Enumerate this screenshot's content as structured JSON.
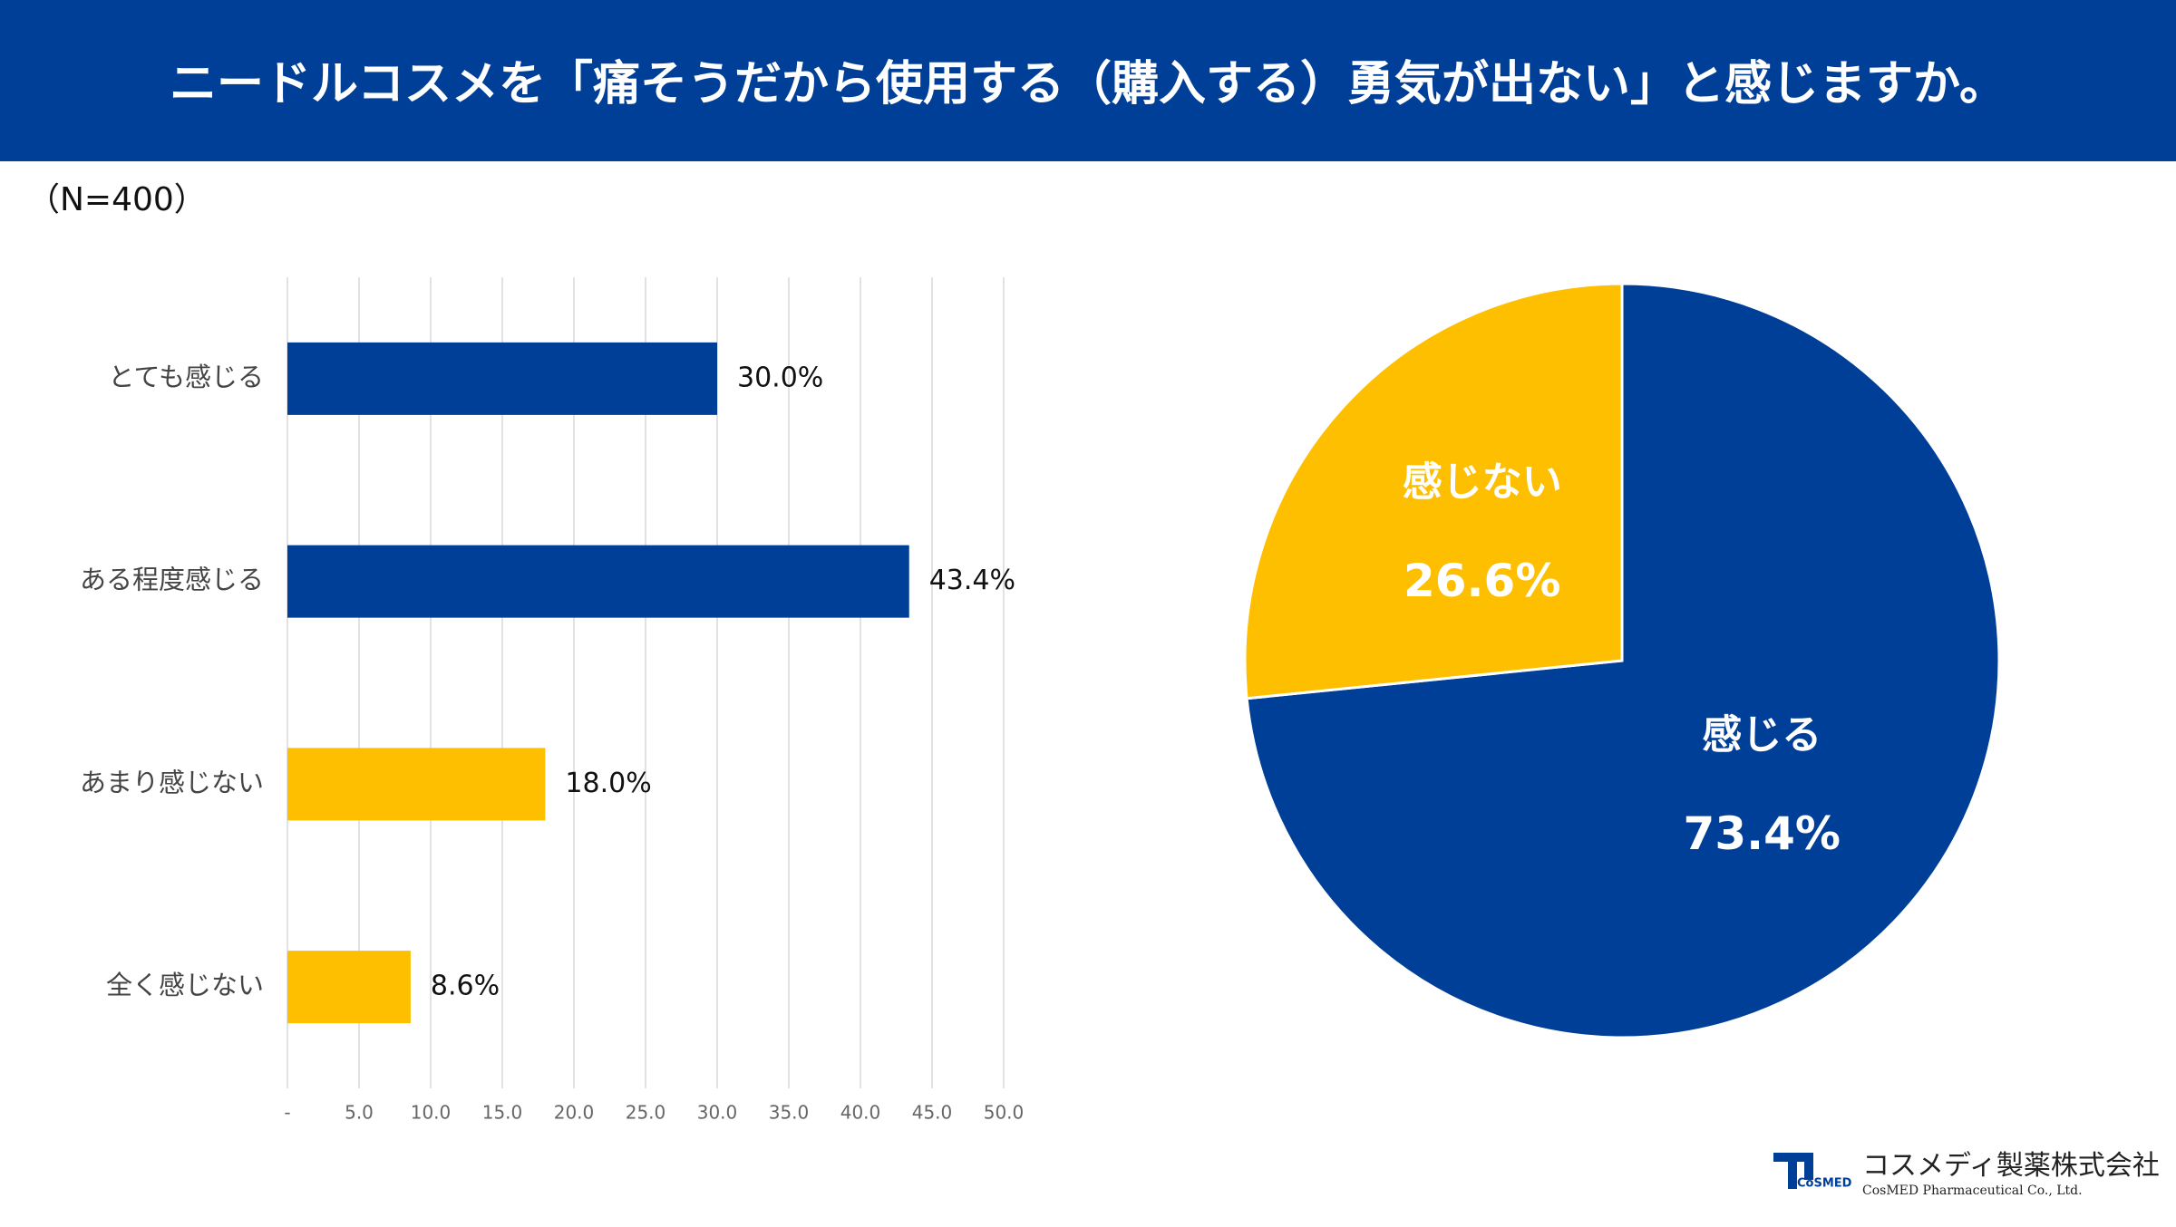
{
  "header": {
    "title": "ニードルコスメを「痛そうだから使用する（購入する）勇気が出ない」と感じますか。"
  },
  "note": "（N=400）",
  "chart_data": [
    {
      "type": "hbar",
      "categories": [
        "とても感じる",
        "ある程度感じる",
        "あまり感じない",
        "全く感じない"
      ],
      "values": [
        30.0,
        43.4,
        18.0,
        8.6
      ],
      "value_labels": [
        "30.0%",
        "43.4%",
        "18.0%",
        "8.6%"
      ],
      "colors": [
        "#003f98",
        "#003f98",
        "#fdbf00",
        "#fdbf00"
      ],
      "xlim": [
        0,
        50
      ],
      "xticks": [
        {
          "value": 0,
          "label": "-"
        },
        {
          "value": 5,
          "label": "5.0"
        },
        {
          "value": 10,
          "label": "10.0"
        },
        {
          "value": 15,
          "label": "15.0"
        },
        {
          "value": 20,
          "label": "20.0"
        },
        {
          "value": 25,
          "label": "25.0"
        },
        {
          "value": 30,
          "label": "30.0"
        },
        {
          "value": 35,
          "label": "35.0"
        },
        {
          "value": 40,
          "label": "40.0"
        },
        {
          "value": 45,
          "label": "45.0"
        },
        {
          "value": 50,
          "label": "50.0"
        }
      ],
      "grid": true
    },
    {
      "type": "pie",
      "categories": [
        "感じる",
        "感じない"
      ],
      "values": [
        73.4,
        26.6
      ],
      "value_labels": [
        "73.4%",
        "26.6%"
      ],
      "colors": [
        "#003f98",
        "#fdbf00"
      ]
    }
  ],
  "logo": {
    "mark": "CoSMED",
    "name": "コスメディ製薬株式会社",
    "name_en": "CosMED Pharmaceutical Co., Ltd."
  }
}
